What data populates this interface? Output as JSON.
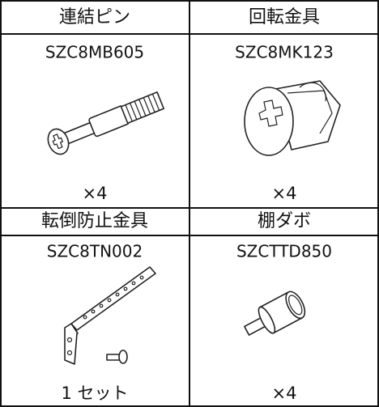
{
  "items": [
    {
      "name": "連結ピン",
      "code": "SZC8MB605",
      "quantity": "×4"
    },
    {
      "name": "回転金具",
      "code": "SZC8MK123",
      "quantity": "×4"
    },
    {
      "name": "転倒防止金具",
      "code": "SZC8TN002",
      "quantity": "1 セット"
    },
    {
      "name": "棚ダボ",
      "code": "SZCTTD850",
      "quantity": "×4"
    }
  ]
}
